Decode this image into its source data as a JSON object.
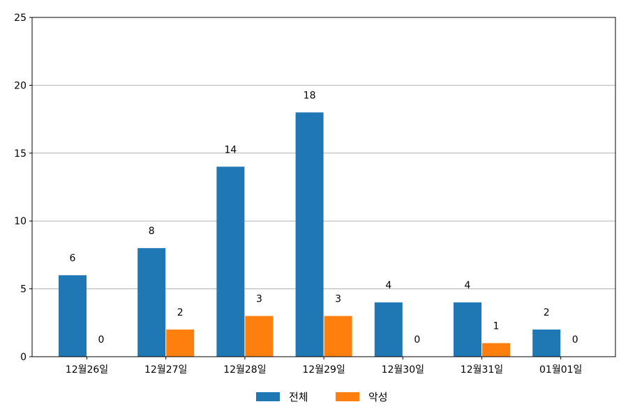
{
  "chart_data": {
    "type": "bar",
    "categories": [
      "12월26일",
      "12월27일",
      "12월28일",
      "12월29일",
      "12월30일",
      "12월31일",
      "01월01일"
    ],
    "series": [
      {
        "name": "전체",
        "values": [
          6,
          8,
          14,
          18,
          4,
          4,
          2
        ],
        "color": "#1f77b4"
      },
      {
        "name": "악성",
        "values": [
          0,
          2,
          3,
          3,
          0,
          1,
          0
        ],
        "color": "#ff7f0e"
      }
    ],
    "ylim": [
      0,
      25
    ],
    "yticks": [
      0,
      5,
      10,
      15,
      20,
      25
    ],
    "grid": "horizontal",
    "legend_position": "bottom-center",
    "data_labels": true
  }
}
